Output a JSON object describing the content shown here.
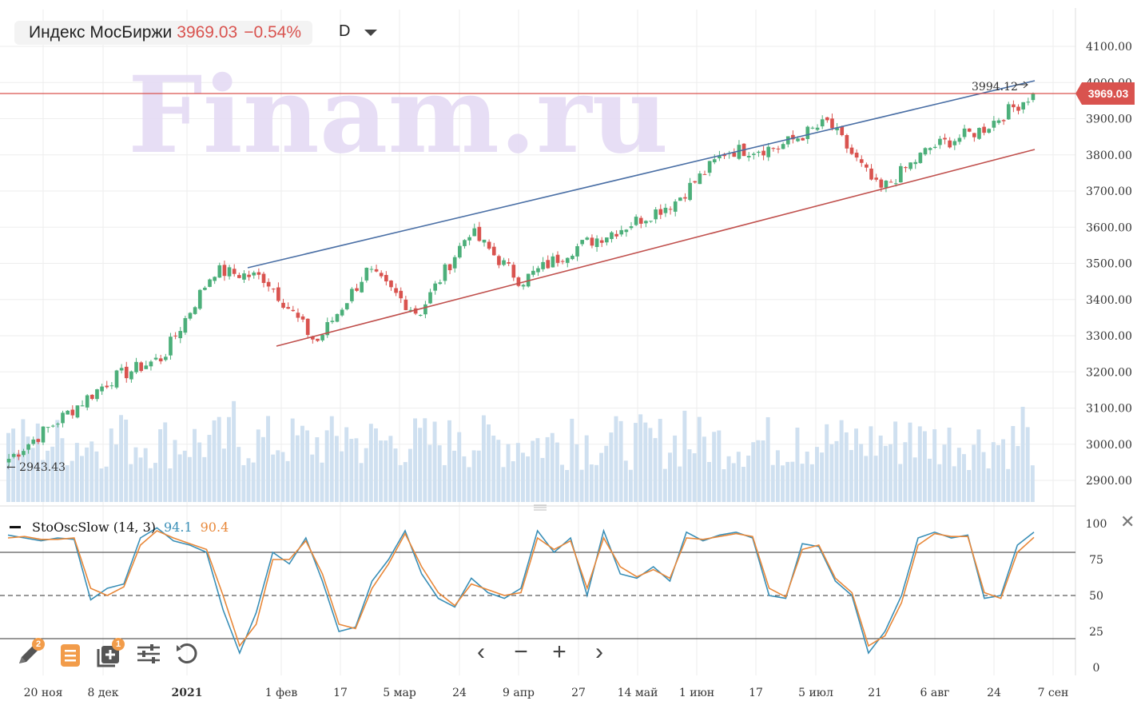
{
  "header": {
    "title": "Индекс МосБиржи",
    "price": "3969.03",
    "change": "−0.54%",
    "interval": "D"
  },
  "watermark": "Finam.ru",
  "price_axis": {
    "ticks": [
      "4100.00",
      "4000.00",
      "3900.00",
      "3800.00",
      "3700.00",
      "3600.00",
      "3500.00",
      "3400.00",
      "3300.00",
      "3200.00",
      "3100.00",
      "3000.00",
      "2900.00"
    ],
    "current_price_label": "3969.03"
  },
  "annotations": {
    "high_label": "3994.12",
    "low_label": "← 2943.43"
  },
  "time_axis": {
    "labels": [
      "20 ноя",
      "8 дек",
      "2021",
      "1 фев",
      "17",
      "5 мар",
      "24",
      "9 апр",
      "27",
      "14 май",
      "1 июн",
      "17",
      "5 июл",
      "21",
      "6 авг",
      "24",
      "7 сен"
    ]
  },
  "oscillator": {
    "name": "StoOscSlow (14, 3)",
    "k_value": "94.1",
    "d_value": "90.4",
    "axis_ticks": [
      "100",
      "75",
      "50",
      "25",
      "0"
    ]
  },
  "colors": {
    "up": "#4caf7a",
    "down": "#d9534f",
    "channel_upper": "#4a6fa5",
    "channel_lower": "#c0504d",
    "k_line": "#3a8fb7",
    "d_line": "#e8883a",
    "volume": "#cfe0f0",
    "grid": "#eeeeee",
    "price_line": "#d9534f"
  },
  "toolbar": {
    "draw_badge": "2",
    "templates_badge": "1"
  },
  "chart_data": [
    {
      "type": "candlestick",
      "title": "Индекс МосБиржи",
      "ylim": [
        2850,
        4150
      ],
      "x_labels": [
        "20 ноя",
        "8 дек",
        "2021",
        "1 фев",
        "17",
        "5 мар",
        "24",
        "9 апр",
        "27",
        "14 май",
        "1 июн",
        "17",
        "5 июл",
        "21",
        "6 авг",
        "24",
        "7 сен"
      ],
      "close_keypoints": [
        {
          "x": "16 ноя 2020",
          "close": 2960
        },
        {
          "x": "20 ноя 2020",
          "close": 3070
        },
        {
          "x": "8 дек 2020",
          "close": 3180
        },
        {
          "x": "21 дек 2020",
          "close": 3240
        },
        {
          "x": "11 янв 2021",
          "close": 3480
        },
        {
          "x": "22 янв 2021",
          "close": 3460
        },
        {
          "x": "29 янв 2021",
          "close": 3280
        },
        {
          "x": "17 фев 2021",
          "close": 3480
        },
        {
          "x": "1 мар 2021",
          "close": 3360
        },
        {
          "x": "19 мар 2021",
          "close": 3590
        },
        {
          "x": "24 мар 2021",
          "close": 3450
        },
        {
          "x": "9 апр 2021",
          "close": 3540
        },
        {
          "x": "27 апр 2021",
          "close": 3600
        },
        {
          "x": "14 май 2021",
          "close": 3670
        },
        {
          "x": "1 июн 2021",
          "close": 3810
        },
        {
          "x": "17 июн 2021",
          "close": 3820
        },
        {
          "x": "5 июл 2021",
          "close": 3890
        },
        {
          "x": "21 июл 2021",
          "close": 3700
        },
        {
          "x": "6 авг 2021",
          "close": 3820
        },
        {
          "x": "24 авг 2021",
          "close": 3870
        },
        {
          "x": "1 сен 2021",
          "close": 3969.03
        }
      ],
      "last_close": 3969.03,
      "period_high": 3994.12,
      "period_low": 2943.43,
      "volume": "shown as bars, values not labeled"
    },
    {
      "type": "line",
      "title": "StoOscSlow (14, 3)",
      "ylim": [
        0,
        100
      ],
      "levels": [
        80,
        50,
        20
      ],
      "series": [
        {
          "name": "%K",
          "last": 94.1,
          "values": [
            92,
            90,
            88,
            90,
            89,
            47,
            55,
            58,
            90,
            97,
            88,
            85,
            80,
            40,
            10,
            38,
            80,
            72,
            90,
            60,
            25,
            28,
            60,
            75,
            95,
            65,
            48,
            42,
            62,
            52,
            48,
            55,
            95,
            80,
            90,
            50,
            95,
            65,
            62,
            70,
            60,
            94,
            88,
            92,
            94,
            90,
            50,
            48,
            86,
            84,
            60,
            50,
            10,
            25,
            50,
            90,
            94,
            90,
            92,
            48,
            50,
            85,
            94
          ]
        },
        {
          "name": "%D",
          "last": 90.4,
          "values": [
            90,
            91,
            89,
            89,
            90,
            55,
            50,
            56,
            85,
            95,
            90,
            86,
            82,
            50,
            15,
            30,
            75,
            75,
            88,
            65,
            30,
            27,
            55,
            72,
            93,
            70,
            52,
            43,
            58,
            54,
            50,
            52,
            90,
            82,
            88,
            55,
            90,
            70,
            63,
            68,
            62,
            90,
            89,
            91,
            93,
            91,
            55,
            49,
            82,
            85,
            62,
            52,
            15,
            22,
            45,
            85,
            93,
            91,
            91,
            52,
            48,
            80,
            90.4
          ]
        }
      ]
    }
  ]
}
